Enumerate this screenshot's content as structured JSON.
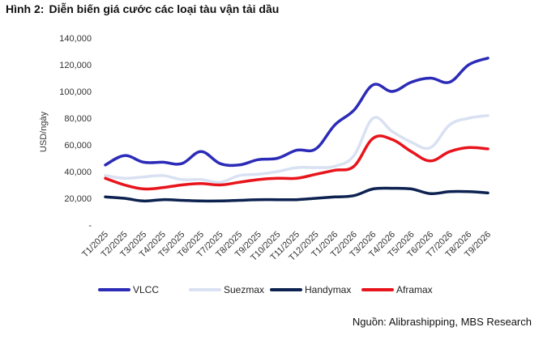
{
  "figure": {
    "label": "Hình 2:",
    "title": "Diễn biến giá cước các loại tàu vận tải dầu",
    "source": "Nguồn: Alibrashipping, MBS Research"
  },
  "chart_data": {
    "type": "line",
    "ylabel": "USD/ngày",
    "ylim": [
      0,
      140000
    ],
    "yticks": [
      0,
      20000,
      40000,
      60000,
      80000,
      100000,
      120000,
      140000
    ],
    "ytick_labels": [
      "-",
      "20,000",
      "40,000",
      "60,000",
      "80,000",
      "100,000",
      "120,000",
      "140,000"
    ],
    "grid": false,
    "legend_position": "bottom",
    "categories": [
      "T1/2025",
      "T2/2025",
      "T3/2025",
      "T4/2025",
      "T5/2025",
      "T6/2025",
      "T7/2025",
      "T8/2025",
      "T9/2025",
      "T10/2025",
      "T11/2025",
      "T12/2025",
      "T1/2026",
      "T2/2026",
      "T3/2026",
      "T4/2026",
      "T5/2026",
      "T6/2026",
      "T7/2026",
      "T8/2026",
      "T9/2026"
    ],
    "series": [
      {
        "name": "VLCC",
        "color": "#2b2bb8",
        "values": [
          45000,
          52000,
          47000,
          47000,
          46000,
          55000,
          46000,
          45000,
          49000,
          50000,
          56000,
          57000,
          75000,
          86000,
          105000,
          100000,
          107000,
          110000,
          107000,
          120000,
          125000
        ]
      },
      {
        "name": "Suezmax",
        "color": "#d9e1f2",
        "values": [
          37000,
          35000,
          36000,
          37000,
          34000,
          34000,
          32000,
          37000,
          38000,
          40000,
          43000,
          43000,
          44000,
          52000,
          80000,
          70000,
          62000,
          58000,
          75000,
          80000,
          82000
        ]
      },
      {
        "name": "Handymax",
        "color": "#0d2250",
        "values": [
          21000,
          20000,
          18000,
          19000,
          18500,
          18000,
          18000,
          18500,
          19000,
          19000,
          19000,
          20000,
          21000,
          22000,
          27000,
          27500,
          27000,
          23500,
          25000,
          25000,
          24000
        ]
      },
      {
        "name": "Aframax",
        "color": "#e8141c",
        "values": [
          35000,
          30000,
          27000,
          28000,
          30000,
          31000,
          30000,
          32000,
          34000,
          35000,
          35000,
          38000,
          41000,
          44000,
          65000,
          64000,
          55000,
          48000,
          55000,
          58000,
          57000
        ]
      }
    ]
  }
}
